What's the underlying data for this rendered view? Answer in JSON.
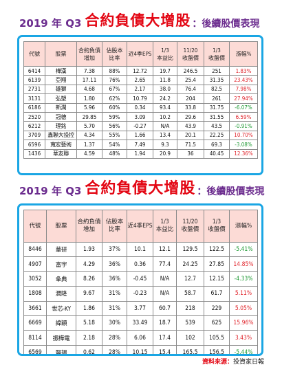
{
  "sections": [
    {
      "title_year": "2019 年 Q3",
      "title_main": "合約負債大增股",
      "title_sub": "：後續股價表現"
    },
    {
      "title_year": "2019 年 Q3",
      "title_main": "合約負債大增股",
      "title_sub": "：後續股價表現"
    }
  ],
  "tables": [
    {
      "headers": [
        "代號",
        "股票",
        "合約負債\n增加",
        "佔股本\n比率",
        "近4季EPS",
        "1/3\n本益比",
        "11/20\n收盤價",
        "1/3\n收盤價",
        "漲幅%"
      ],
      "rows": [
        {
          "cells": [
            "6414",
            "樺漢",
            "7.38",
            "88%",
            "12.72",
            "19.7",
            "246.5",
            "251",
            "1.83%"
          ],
          "trend": "up"
        },
        {
          "cells": [
            "6139",
            "亞翔",
            "17.11",
            "76%",
            "2.65",
            "11.8",
            "25.4",
            "31.35",
            "23.43%"
          ],
          "trend": "up"
        },
        {
          "cells": [
            "2731",
            "雄獅",
            "4.68",
            "67%",
            "2.17",
            "38.0",
            "76.4",
            "82.5",
            "7.98%"
          ],
          "trend": "up"
        },
        {
          "cells": [
            "3131",
            "弘塑",
            "1.80",
            "62%",
            "10.79",
            "24.2",
            "204",
            "261",
            "27.94%"
          ],
          "trend": "up"
        },
        {
          "cells": [
            "6186",
            "新潤",
            "5.96",
            "60%",
            "0.34",
            "93.4",
            "33.8",
            "31.75",
            "-6.07%"
          ],
          "trend": "down"
        },
        {
          "cells": [
            "2520",
            "冠德",
            "29.85",
            "59%",
            "3.09",
            "10.2",
            "29.6",
            "31.55",
            "6.59%"
          ],
          "trend": "up"
        },
        {
          "cells": [
            "6212",
            "理銘",
            "5.70",
            "56%",
            "-0.27",
            "N/A",
            "43.9",
            "43.5",
            "-0.91%"
          ],
          "trend": "down"
        },
        {
          "cells": [
            "3709",
            "鑫聯大投控",
            "4.34",
            "55%",
            "1.66",
            "13.4",
            "20.1",
            "22.25",
            "10.70%"
          ],
          "trend": "up"
        },
        {
          "cells": [
            "6596",
            "寬宏藝術",
            "1.37",
            "54%",
            "7.49",
            "9.3",
            "71.5",
            "69.3",
            "-3.08%"
          ],
          "trend": "down"
        },
        {
          "cells": [
            "1436",
            "華友聯",
            "4.59",
            "48%",
            "1.94",
            "20.9",
            "36",
            "40.45",
            "12.36%"
          ],
          "trend": "up"
        }
      ]
    },
    {
      "headers": [
        "代號",
        "股票",
        "合約負債\n增加",
        "佔股本\n比率",
        "近4季EPS",
        "1/3\n本益比",
        "11/20\n收盤價",
        "1/3\n收盤價",
        "漲幅%"
      ],
      "rows": [
        {
          "cells": [
            "8446",
            "華研",
            "1.93",
            "37%",
            "10.1",
            "12.1",
            "129.5",
            "122.5",
            "-5.41%"
          ],
          "trend": "down"
        },
        {
          "cells": [
            "4907",
            "富宇",
            "4.29",
            "36%",
            "0.36",
            "77.4",
            "24.25",
            "27.85",
            "14.85%"
          ],
          "trend": "up"
        },
        {
          "cells": [
            "3052",
            "夆典",
            "8.26",
            "36%",
            "-0.45",
            "N/A",
            "12.7",
            "12.15",
            "-4.33%"
          ],
          "trend": "down"
        },
        {
          "cells": [
            "1808",
            "潤隆",
            "9.67",
            "31%",
            "-0.23",
            "N/A",
            "58.7",
            "61.7",
            "5.11%"
          ],
          "trend": "up"
        },
        {
          "cells": [
            "3661",
            "世芯-KY",
            "1.86",
            "31%",
            "3.77",
            "60.7",
            "218",
            "229",
            "5.05%"
          ],
          "trend": "up"
        },
        {
          "cells": [
            "6669",
            "緯穎",
            "5.18",
            "30%",
            "33.49",
            "18.7",
            "539",
            "625",
            "15.96%"
          ],
          "trend": "up"
        },
        {
          "cells": [
            "8114",
            "振樺電",
            "2.18",
            "28%",
            "6.06",
            "17.4",
            "102",
            "105.5",
            "3.43%"
          ],
          "trend": "up"
        },
        {
          "cells": [
            "6569",
            "醫揚",
            "0.62",
            "28%",
            "10.15",
            "15.4",
            "165.5",
            "156.5",
            "-5.44%"
          ],
          "trend": "down"
        }
      ]
    }
  ],
  "source": {
    "label": "資料來源：",
    "value": "投資家日報"
  },
  "colors": {
    "up": "#e0242b",
    "down": "#1f9a34",
    "header_bg": "#fcdbd6",
    "frame": "#1aa6e4",
    "title_red": "#e30613",
    "title_purple": "#6b2c8e"
  }
}
